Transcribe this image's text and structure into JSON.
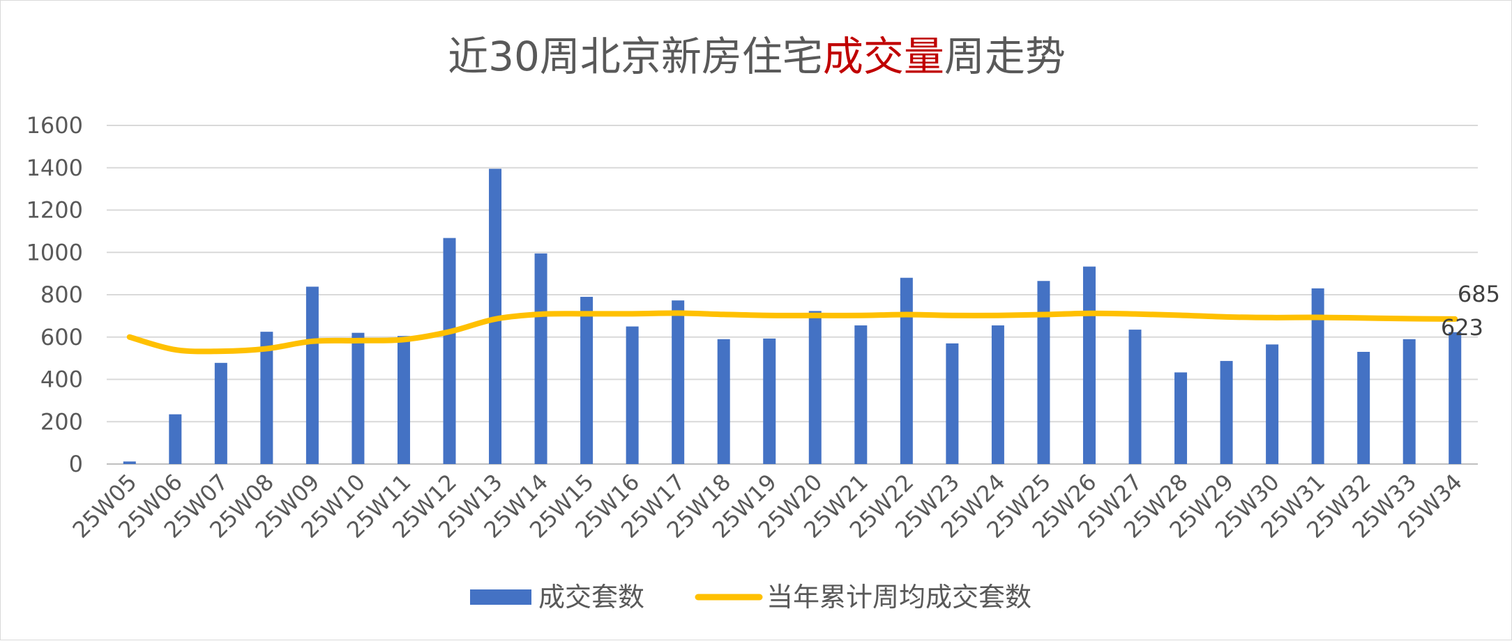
{
  "chart_data": {
    "type": "bar",
    "title_parts": [
      {
        "text": "近30周北京新房住宅",
        "color": "#595959"
      },
      {
        "text": "成交量",
        "color": "#c00000"
      },
      {
        "text": "周走势",
        "color": "#595959"
      }
    ],
    "categories": [
      "25W05",
      "25W06",
      "25W07",
      "25W08",
      "25W09",
      "25W10",
      "25W11",
      "25W12",
      "25W13",
      "25W14",
      "25W15",
      "25W16",
      "25W17",
      "25W18",
      "25W19",
      "25W20",
      "25W21",
      "25W22",
      "25W23",
      "25W24",
      "25W25",
      "25W26",
      "25W27",
      "25W28",
      "25W29",
      "25W30",
      "25W31",
      "25W32",
      "25W33",
      "25W34"
    ],
    "series": [
      {
        "name": "成交套数",
        "type": "bar",
        "color": "#4472c4",
        "values": [
          12,
          235,
          478,
          625,
          838,
          620,
          605,
          1068,
          1395,
          995,
          790,
          650,
          773,
          590,
          593,
          723,
          655,
          880,
          570,
          655,
          865,
          933,
          635,
          433,
          487,
          565,
          830,
          530,
          590,
          623
        ]
      },
      {
        "name": "当年累计周均成交套数",
        "type": "line",
        "color": "#ffc000",
        "values": [
          600,
          540,
          533,
          545,
          580,
          583,
          588,
          625,
          685,
          708,
          710,
          710,
          713,
          707,
          702,
          702,
          702,
          706,
          702,
          702,
          706,
          712,
          709,
          703,
          695,
          692,
          693,
          690,
          687,
          685
        ]
      }
    ],
    "data_labels": [
      "685",
      "623"
    ],
    "y_ticks": [
      "0",
      "200",
      "400",
      "600",
      "800",
      "1000",
      "1200",
      "1400",
      "1600"
    ],
    "ylim": [
      0,
      1600
    ],
    "grid": true,
    "legend_position": "bottom"
  }
}
